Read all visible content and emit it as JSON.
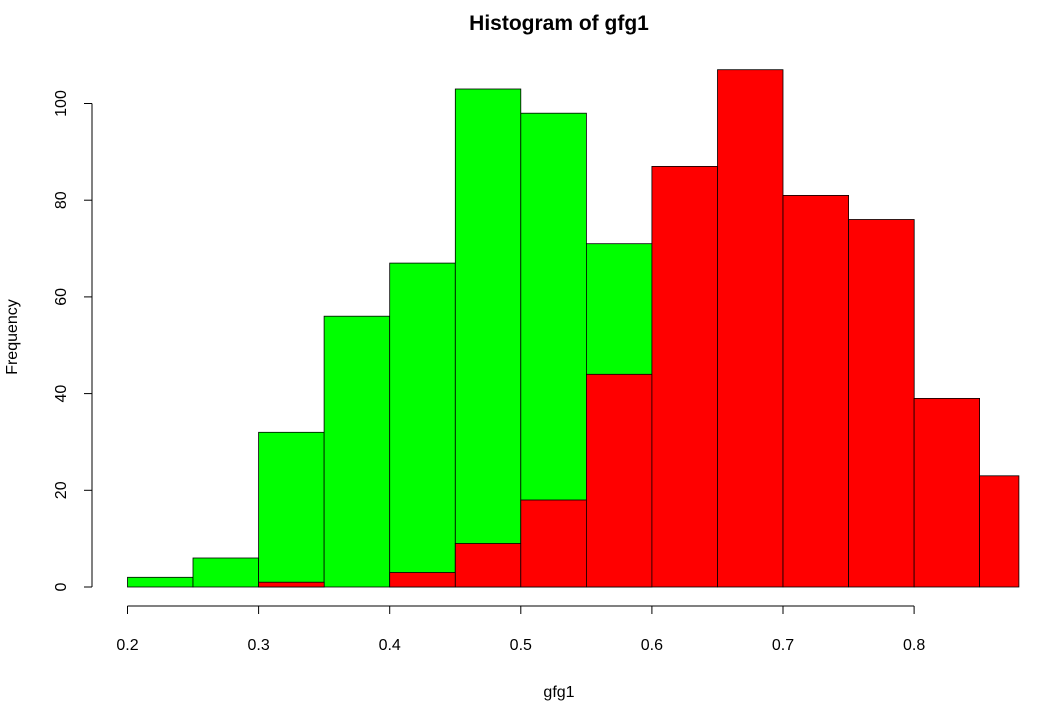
{
  "chart_data": {
    "type": "bar",
    "title": "Histogram of gfg1",
    "xlabel": "gfg1",
    "ylabel": "Frequency",
    "xlim": [
      0.2,
      0.88
    ],
    "ylim": [
      0,
      107
    ],
    "x_ticks": [
      0.2,
      0.3,
      0.4,
      0.5,
      0.6,
      0.7,
      0.8
    ],
    "x_tick_labels": [
      "0.2",
      "0.3",
      "0.4",
      "0.5",
      "0.6",
      "0.7",
      "0.8"
    ],
    "y_ticks": [
      0,
      20,
      40,
      60,
      80,
      100
    ],
    "y_tick_labels": [
      "0",
      "20",
      "40",
      "60",
      "80",
      "100"
    ],
    "series": [
      {
        "color": "#00ff00",
        "bins": [
          {
            "start": 0.2,
            "end": 0.25,
            "count": 2
          },
          {
            "start": 0.25,
            "end": 0.3,
            "count": 6
          },
          {
            "start": 0.3,
            "end": 0.35,
            "count": 32
          },
          {
            "start": 0.35,
            "end": 0.4,
            "count": 56
          },
          {
            "start": 0.4,
            "end": 0.45,
            "count": 67
          },
          {
            "start": 0.45,
            "end": 0.5,
            "count": 103
          },
          {
            "start": 0.5,
            "end": 0.55,
            "count": 98
          },
          {
            "start": 0.55,
            "end": 0.6,
            "count": 71
          }
        ]
      },
      {
        "color": "#ff0000",
        "bins": [
          {
            "start": 0.3,
            "end": 0.35,
            "count": 1
          },
          {
            "start": 0.4,
            "end": 0.45,
            "count": 3
          },
          {
            "start": 0.45,
            "end": 0.5,
            "count": 9
          },
          {
            "start": 0.5,
            "end": 0.55,
            "count": 18
          },
          {
            "start": 0.55,
            "end": 0.6,
            "count": 44
          },
          {
            "start": 0.6,
            "end": 0.65,
            "count": 87
          },
          {
            "start": 0.65,
            "end": 0.7,
            "count": 107
          },
          {
            "start": 0.7,
            "end": 0.75,
            "count": 81
          },
          {
            "start": 0.75,
            "end": 0.8,
            "count": 76
          },
          {
            "start": 0.8,
            "end": 0.85,
            "count": 39
          },
          {
            "start": 0.85,
            "end": 0.88,
            "count": 23
          }
        ]
      }
    ]
  }
}
